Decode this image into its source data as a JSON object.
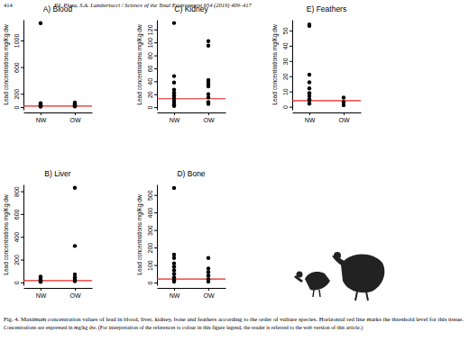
{
  "page": {
    "number": "414",
    "running_head": "P.I. Plaza, S.A. Lambertucci / Science of the Total Environment 654 (2019) 409–417",
    "caption": [
      "Fig. 4. Maximum concentration values of lead in blood, liver, kidney, bone and feathers according to the order of vulture species. Horizontal red line marks the threshold level for this tissue.",
      "Concentrations are expressed in mg/kg dw. (For interpretation of the references to colour in this figure legend, the reader is referred to the web version of this article.)"
    ]
  },
  "chart_data": [
    {
      "type": "strip",
      "title": "A) Blood",
      "y_label": "Lead concentrations mg/Kg dw",
      "categories": [
        "NW",
        "OW"
      ],
      "values": [
        [
          1260,
          60,
          45,
          35,
          25,
          15,
          8
        ],
        [
          70,
          50,
          35,
          20,
          10
        ]
      ],
      "threshold": 15,
      "color": "#000000",
      "ylim": [
        -40,
        1310
      ],
      "yticks": [
        0,
        200,
        600,
        1000
      ]
    },
    {
      "type": "strip",
      "title": "B) Liver",
      "y_label": "Lead concentrations mg/Kg dw",
      "categories": [
        "NW",
        "OW"
      ],
      "values": [
        [
          50,
          35,
          20,
          10,
          5
        ],
        [
          830,
          320,
          70,
          45,
          25,
          10
        ]
      ],
      "threshold": 15,
      "color": "#000000",
      "ylim": [
        -25,
        860
      ],
      "yticks": [
        0,
        200,
        400,
        600,
        800
      ]
    },
    {
      "type": "strip",
      "title": "C) Kidney",
      "y_label": "Lead concentrations mg/Kg dw",
      "categories": [
        "NW",
        "OW"
      ],
      "values": [
        [
          130,
          48,
          38,
          27,
          22,
          18,
          14,
          10,
          7,
          4,
          2
        ],
        [
          102,
          95,
          42,
          38,
          35,
          32,
          20,
          15,
          8,
          5
        ]
      ],
      "threshold": 13,
      "color": "#000000",
      "ylim": [
        -4,
        135
      ],
      "yticks": [
        0,
        20,
        40,
        60,
        80,
        100,
        120
      ]
    },
    {
      "type": "strip",
      "title": "D) Bone",
      "y_label": "Lead concentrations mg/Kg dw",
      "categories": [
        "NW",
        "OW"
      ],
      "values": [
        [
          540,
          160,
          140,
          110,
          90,
          70,
          50,
          30,
          15,
          5
        ],
        [
          140,
          80,
          60,
          40,
          20,
          5
        ]
      ],
      "threshold": 20,
      "color": "#000000",
      "ylim": [
        -15,
        560
      ],
      "yticks": [
        0,
        100,
        200,
        300,
        400,
        500
      ]
    },
    {
      "type": "strip",
      "title": "E) Feathers",
      "y_label": "Lead concentrations mg/Kg dw",
      "categories": [
        "NW",
        "OW"
      ],
      "values": [
        [
          54,
          53,
          21,
          16,
          12,
          9,
          7,
          5,
          4,
          2
        ],
        [
          6,
          3,
          1
        ]
      ],
      "threshold": 4,
      "color": "#000000",
      "ylim": [
        -2,
        57
      ],
      "yticks": [
        0,
        10,
        20,
        30,
        40,
        50
      ]
    }
  ]
}
